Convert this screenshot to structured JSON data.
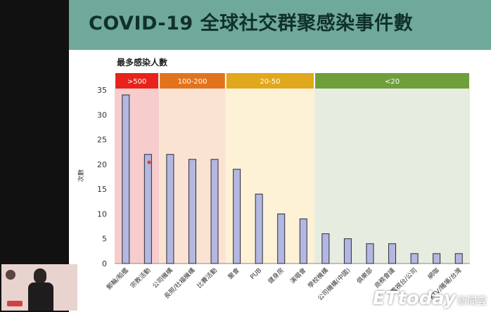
{
  "slide": {
    "title": "COVID-19 全球社交群聚感染事件數",
    "subtitle": "最多感染人數"
  },
  "watermark": {
    "main": "ETtoday",
    "sub": "新聞雲"
  },
  "colors": {
    "title_bar": "#6fa99a",
    "bar_fill": "#b3b8e0",
    "bar_stroke": "#2a2a3a"
  },
  "chart_data": {
    "type": "bar",
    "title": "最多感染人數",
    "xlabel": "",
    "ylabel": "次數",
    "ylim": [
      0,
      35
    ],
    "yticks": [
      0,
      5,
      10,
      15,
      20,
      25,
      30,
      35
    ],
    "categories": [
      "郵輪/船艦",
      "宗教活動",
      "公司機構",
      "長照/社福機構",
      "比賽活動",
      "聚會",
      "PUB",
      "健身房",
      "演唱會",
      "學校機構",
      "公司機構(中國)",
      "俱樂部",
      "商務會議",
      "電視台/公司",
      "網咖",
      "KTV/賭場/台灣"
    ],
    "values": [
      34,
      22,
      22,
      21,
      21,
      19,
      14,
      10,
      9,
      6,
      5,
      4,
      4,
      2,
      2,
      2
    ],
    "bands": [
      {
        "label": ">500",
        "start": 0,
        "end": 2,
        "header_color": "#e8231b",
        "bg_color": "#f6cccc"
      },
      {
        "label": "100-200",
        "start": 2,
        "end": 5,
        "header_color": "#e2731e",
        "bg_color": "#fbe3d3"
      },
      {
        "label": "20-50",
        "start": 5,
        "end": 9,
        "header_color": "#e0a81c",
        "bg_color": "#fdf1d6"
      },
      {
        "label": "<20",
        "start": 9,
        "end": 16,
        "header_color": "#6e9f3b",
        "bg_color": "#e6ecdf"
      }
    ]
  }
}
